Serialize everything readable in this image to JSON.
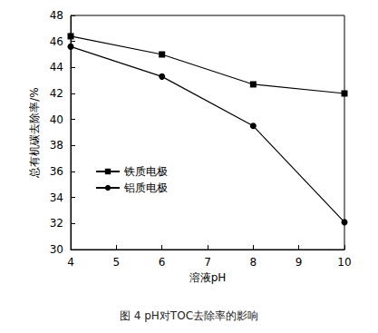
{
  "chart_data": {
    "type": "line",
    "title": "图 4 pH对TOC去除率的影响",
    "x_label": "溶液pH",
    "y_label": "总有机碳去除率/%",
    "x": [
      4,
      6,
      8,
      10
    ],
    "series": [
      {
        "name": "铁质电极",
        "color": "#000000",
        "marker": "square",
        "values": [
          46.4,
          45.0,
          42.7,
          42.0
        ]
      },
      {
        "name": "铝质电极",
        "color": "#000000",
        "marker": "circle",
        "values": [
          45.6,
          43.3,
          39.5,
          32.1
        ]
      }
    ],
    "xlim": [
      4,
      10
    ],
    "xticks": [
      4,
      5,
      6,
      7,
      8,
      9,
      10
    ],
    "ylim": [
      30,
      48
    ],
    "yticks": [
      30,
      32,
      34,
      36,
      38,
      40,
      42,
      44,
      46,
      48
    ],
    "grid": false,
    "legend": "left"
  }
}
